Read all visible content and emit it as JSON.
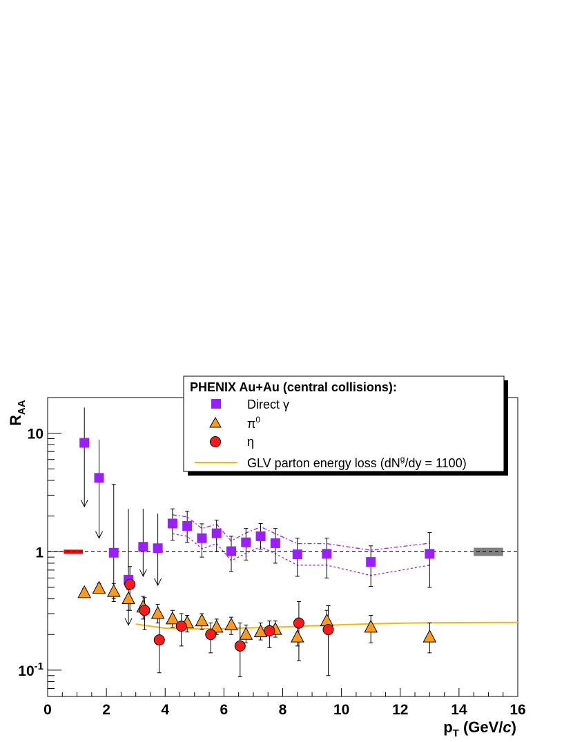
{
  "chart_data": {
    "type": "scatter",
    "title": "",
    "xlabel": "p",
    "xlabel_sub": "T",
    "xlabel_unit": " (GeV/",
    "xlabel_unit_italic": "c",
    "xlabel_close": ")",
    "ylabel": "R",
    "ylabel_sub": "AA",
    "xlim": [
      0,
      16
    ],
    "ylim": [
      0.06,
      20
    ],
    "yscale": "log",
    "x_ticks": [
      0,
      2,
      4,
      6,
      8,
      10,
      12,
      14,
      16
    ],
    "x_tick_labels": [
      "0",
      "2",
      "4",
      "6",
      "8",
      "10",
      "12",
      "14",
      "16"
    ],
    "y_tick_labels": [
      {
        "value": 10,
        "base": "10",
        "exp": ""
      },
      {
        "value": 1,
        "base": "1",
        "exp": ""
      },
      {
        "value": 0.1,
        "base": "10",
        "exp": "-1"
      }
    ],
    "reference_line": 1,
    "legend": {
      "title": "PHENIX Au+Au (central collisions):",
      "entries": [
        {
          "key": "gamma",
          "base": "Direct ",
          "greek": "γ",
          "sup": "",
          "tail": ""
        },
        {
          "key": "pi0",
          "base": "",
          "greek": "π",
          "sup": "0",
          "tail": ""
        },
        {
          "key": "eta",
          "base": "",
          "greek": "η",
          "sup": "",
          "tail": ""
        },
        {
          "key": "glv",
          "base": "GLV parton energy loss (dN",
          "greek": "",
          "sup": "g",
          "tail": "/dy = 1100)"
        }
      ]
    },
    "colors": {
      "gamma": "#9a1fff",
      "pi0": "#ff9a1a",
      "eta": "#ff1a1a",
      "glv": "#ffb400",
      "global_norm_left": "#ff0000",
      "global_norm_right": "#808080"
    },
    "series": [
      {
        "name": "Direct γ",
        "key": "gamma",
        "marker": "square",
        "points": [
          {
            "x": 1.25,
            "y": 8.3,
            "lo": 2.4,
            "hi": 16.5,
            "limit": true
          },
          {
            "x": 1.75,
            "y": 4.2,
            "lo": 1.3,
            "hi": 8.8,
            "limit": true
          },
          {
            "x": 2.25,
            "y": 0.98,
            "lo": 0.4,
            "hi": 3.7,
            "limit": false
          },
          {
            "x": 2.75,
            "y": 0.58,
            "lo": 0.24,
            "hi": 2.3,
            "limit": true
          },
          {
            "x": 3.25,
            "y": 1.1,
            "lo": 0.62,
            "hi": 2.3,
            "limit": true
          },
          {
            "x": 3.75,
            "y": 1.07,
            "lo": 0.52,
            "hi": 2.1,
            "limit": true
          },
          {
            "x": 4.25,
            "y": 1.73,
            "lo": 1.25,
            "hi": 2.3,
            "limit": false
          },
          {
            "x": 4.75,
            "y": 1.65,
            "lo": 1.2,
            "hi": 2.2,
            "limit": false
          },
          {
            "x": 5.25,
            "y": 1.3,
            "lo": 0.9,
            "hi": 1.72,
            "limit": false
          },
          {
            "x": 5.75,
            "y": 1.43,
            "lo": 1.0,
            "hi": 1.85,
            "limit": false
          },
          {
            "x": 6.25,
            "y": 1.01,
            "lo": 0.68,
            "hi": 1.35,
            "limit": false
          },
          {
            "x": 6.75,
            "y": 1.2,
            "lo": 0.85,
            "hi": 1.57,
            "limit": false
          },
          {
            "x": 7.25,
            "y": 1.35,
            "lo": 1.05,
            "hi": 1.73,
            "limit": false
          },
          {
            "x": 7.75,
            "y": 1.18,
            "lo": 0.8,
            "hi": 1.57,
            "limit": false
          },
          {
            "x": 8.5,
            "y": 0.95,
            "lo": 0.62,
            "hi": 1.3,
            "limit": false
          },
          {
            "x": 9.5,
            "y": 0.96,
            "lo": 0.6,
            "hi": 1.3,
            "limit": false
          },
          {
            "x": 11.0,
            "y": 0.82,
            "lo": 0.51,
            "hi": 1.12,
            "limit": false
          },
          {
            "x": 13.0,
            "y": 0.96,
            "lo": 0.5,
            "hi": 1.45,
            "limit": false
          }
        ],
        "band_x": [
          4.25,
          4.75,
          5.25,
          5.75,
          6.25,
          6.75,
          7.25,
          7.75,
          8.5,
          9.5,
          11.0,
          13.0
        ],
        "band_hi": [
          2.05,
          1.97,
          1.57,
          1.71,
          1.23,
          1.44,
          1.62,
          1.42,
          1.17,
          1.17,
          1.03,
          1.18
        ],
        "band_lo": [
          1.42,
          1.35,
          1.06,
          1.17,
          0.84,
          0.97,
          1.1,
          0.96,
          0.77,
          0.77,
          0.63,
          0.77
        ]
      },
      {
        "name": "π0",
        "key": "pi0",
        "marker": "triangle",
        "points": [
          {
            "x": 1.25,
            "y": 0.45,
            "lo": 0.41,
            "hi": 0.49
          },
          {
            "x": 1.75,
            "y": 0.49,
            "lo": 0.45,
            "hi": 0.54
          },
          {
            "x": 2.25,
            "y": 0.46,
            "lo": 0.38,
            "hi": 0.54
          },
          {
            "x": 2.75,
            "y": 0.4,
            "lo": 0.32,
            "hi": 0.48
          },
          {
            "x": 3.25,
            "y": 0.34,
            "lo": 0.27,
            "hi": 0.42
          },
          {
            "x": 3.75,
            "y": 0.3,
            "lo": 0.25,
            "hi": 0.36
          },
          {
            "x": 4.25,
            "y": 0.27,
            "lo": 0.23,
            "hi": 0.32
          },
          {
            "x": 4.75,
            "y": 0.25,
            "lo": 0.21,
            "hi": 0.29
          },
          {
            "x": 5.25,
            "y": 0.26,
            "lo": 0.22,
            "hi": 0.3
          },
          {
            "x": 5.75,
            "y": 0.23,
            "lo": 0.2,
            "hi": 0.27
          },
          {
            "x": 6.25,
            "y": 0.24,
            "lo": 0.2,
            "hi": 0.28
          },
          {
            "x": 6.75,
            "y": 0.2,
            "lo": 0.17,
            "hi": 0.24
          },
          {
            "x": 7.25,
            "y": 0.21,
            "lo": 0.18,
            "hi": 0.25
          },
          {
            "x": 7.75,
            "y": 0.22,
            "lo": 0.19,
            "hi": 0.26
          },
          {
            "x": 8.5,
            "y": 0.19,
            "lo": 0.16,
            "hi": 0.23
          },
          {
            "x": 9.5,
            "y": 0.26,
            "lo": 0.22,
            "hi": 0.32
          },
          {
            "x": 11.0,
            "y": 0.23,
            "lo": 0.17,
            "hi": 0.29
          },
          {
            "x": 13.0,
            "y": 0.19,
            "lo": 0.14,
            "hi": 0.25
          }
        ]
      },
      {
        "name": "η",
        "key": "eta",
        "marker": "circle",
        "points": [
          {
            "x": 2.8,
            "y": 0.53,
            "lo": 0.32,
            "hi": 0.75
          },
          {
            "x": 3.3,
            "y": 0.32,
            "lo": 0.22,
            "hi": 0.41
          },
          {
            "x": 3.8,
            "y": 0.18,
            "lo": 0.095,
            "hi": 0.28
          },
          {
            "x": 4.55,
            "y": 0.235,
            "lo": 0.16,
            "hi": 0.3
          },
          {
            "x": 5.55,
            "y": 0.2,
            "lo": 0.14,
            "hi": 0.25
          },
          {
            "x": 6.55,
            "y": 0.16,
            "lo": 0.088,
            "hi": 0.25
          },
          {
            "x": 7.55,
            "y": 0.215,
            "lo": 0.155,
            "hi": 0.26
          },
          {
            "x": 8.55,
            "y": 0.25,
            "lo": 0.12,
            "hi": 0.38
          },
          {
            "x": 9.55,
            "y": 0.22,
            "lo": 0.09,
            "hi": 0.35
          }
        ]
      },
      {
        "name": "GLV parton energy loss",
        "key": "glv",
        "marker": "line",
        "x": [
          3.0,
          4.0,
          5.0,
          6.0,
          7.0,
          8.0,
          9.0,
          10.0,
          11.0,
          12.0,
          13.0,
          14.0,
          15.0,
          16.0
        ],
        "values": [
          0.245,
          0.226,
          0.223,
          0.224,
          0.228,
          0.232,
          0.237,
          0.242,
          0.246,
          0.249,
          0.251,
          0.252,
          0.253,
          0.253
        ]
      }
    ],
    "global_norm_boxes": [
      {
        "side": "left",
        "x1": 0.55,
        "x2": 1.2,
        "y1": 0.96,
        "y2": 1.04
      },
      {
        "side": "right",
        "x1": 14.5,
        "x2": 15.5,
        "y1": 0.92,
        "y2": 1.08
      }
    ]
  }
}
